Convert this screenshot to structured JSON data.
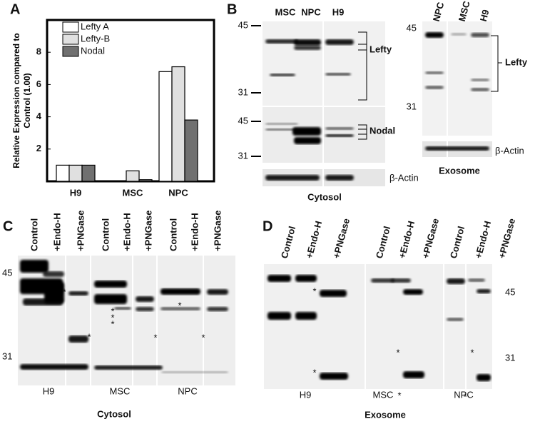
{
  "chart_data": {
    "type": "bar",
    "panel_label": "A",
    "y_label": "Relative Expression compared to Control (1.00)",
    "categories": [
      "H9",
      "MSC",
      "NPC"
    ],
    "series": [
      {
        "name": "Lefty A",
        "color": "#ffffff",
        "values": [
          1,
          0,
          6.8
        ]
      },
      {
        "name": "Lefty-B",
        "color": "#e0e0e0",
        "values": [
          1,
          0.65,
          7.1
        ]
      },
      {
        "name": "Nodal",
        "color": "#707070",
        "values": [
          1,
          0.1,
          3.8
        ]
      }
    ],
    "ylim": [
      0,
      10
    ],
    "yticks": [
      2,
      4,
      6,
      8
    ],
    "grid": false
  },
  "panel_b": {
    "label": "B",
    "cytosol": {
      "lanes": [
        "MSC",
        "NPC",
        "H9"
      ],
      "mw_upper": [
        "45",
        "31"
      ],
      "mw_lower": [
        "45",
        "31"
      ],
      "band_labels": [
        "Lefty",
        "Nodal",
        "β-Actin"
      ],
      "caption": "Cytosol"
    },
    "exosome": {
      "lanes": [
        "NPC",
        "MSC",
        "H9"
      ],
      "mw": [
        "45",
        "31"
      ],
      "band_labels": [
        "Lefty",
        "β-Actin"
      ],
      "caption": "Exosome"
    }
  },
  "panel_c": {
    "label": "C",
    "lanes": [
      "Control",
      "+Endo-H",
      "+PNGase",
      "Control",
      "+Endo-H",
      "+PNGase",
      "Control",
      "+Endo-H",
      "+PNGase"
    ],
    "groups": [
      "H9",
      "MSC",
      "NPC"
    ],
    "mw": [
      "45",
      "31"
    ],
    "asterisks": [
      "*",
      "*",
      "*",
      "*",
      "*",
      "*",
      "*",
      "*"
    ],
    "caption": "Cytosol"
  },
  "panel_d": {
    "label": "D",
    "lanes": [
      "Control",
      "+Endo-H",
      "+PNGase",
      "Control",
      "+Endo-H",
      "+PNGase",
      "Control",
      "+Endo-H",
      "+PNGase"
    ],
    "groups": [
      "H9",
      "MSC",
      "NPC"
    ],
    "mw": [
      "45",
      "31"
    ],
    "asterisks": [
      "*",
      "*",
      "*",
      "*",
      "*",
      "*"
    ],
    "caption": "Exosome"
  }
}
